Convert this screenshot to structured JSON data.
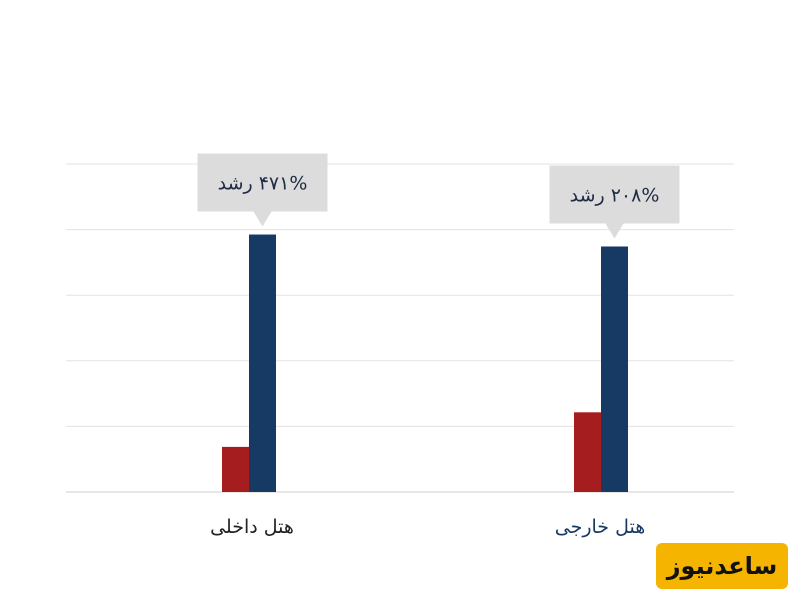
{
  "chart_data": {
    "type": "bar",
    "categories": [
      "هتل داخلی",
      "هتل خارجی"
    ],
    "series": [
      {
        "color": "#a51d1f",
        "values": [
          27.5,
          48.6
        ]
      },
      {
        "color": "#173a64",
        "values": [
          157,
          149.7
        ]
      }
    ],
    "ylim": [
      0,
      200
    ],
    "grid": true,
    "annotations": [
      "۴۷۱% رشد",
      "۲۰۸% رشد"
    ],
    "category_colors": [
      "#222222",
      "#173a64"
    ]
  },
  "logo": {
    "text": "ساعدنیوز"
  }
}
